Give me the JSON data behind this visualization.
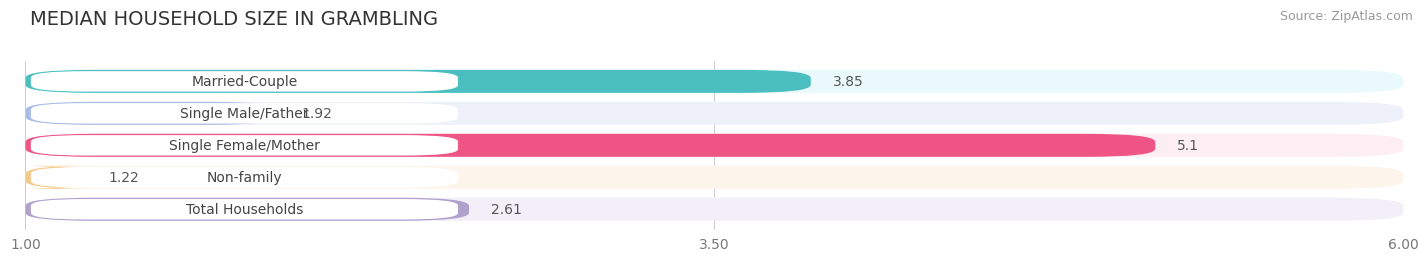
{
  "title": "MEDIAN HOUSEHOLD SIZE IN GRAMBLING",
  "source": "Source: ZipAtlas.com",
  "categories": [
    "Married-Couple",
    "Single Male/Father",
    "Single Female/Mother",
    "Non-family",
    "Total Households"
  ],
  "values": [
    3.85,
    1.92,
    5.1,
    1.22,
    2.61
  ],
  "bar_colors": [
    "#4BBFBF",
    "#AABDE8",
    "#EE5585",
    "#F5C98A",
    "#B0A0CC"
  ],
  "bar_bg_colors": [
    "#EAFAFC",
    "#EEF1FA",
    "#FDEEF3",
    "#FDF5EC",
    "#F2EFF8"
  ],
  "xlim_min": 1.0,
  "xlim_max": 6.0,
  "xticks": [
    1.0,
    3.5,
    6.0
  ],
  "value_label_color": "#555555",
  "title_fontsize": 14,
  "source_fontsize": 9,
  "label_fontsize": 10,
  "value_fontsize": 10,
  "tick_fontsize": 10,
  "background_color": "#FFFFFF",
  "bar_sep_color": "#DDDDDD"
}
